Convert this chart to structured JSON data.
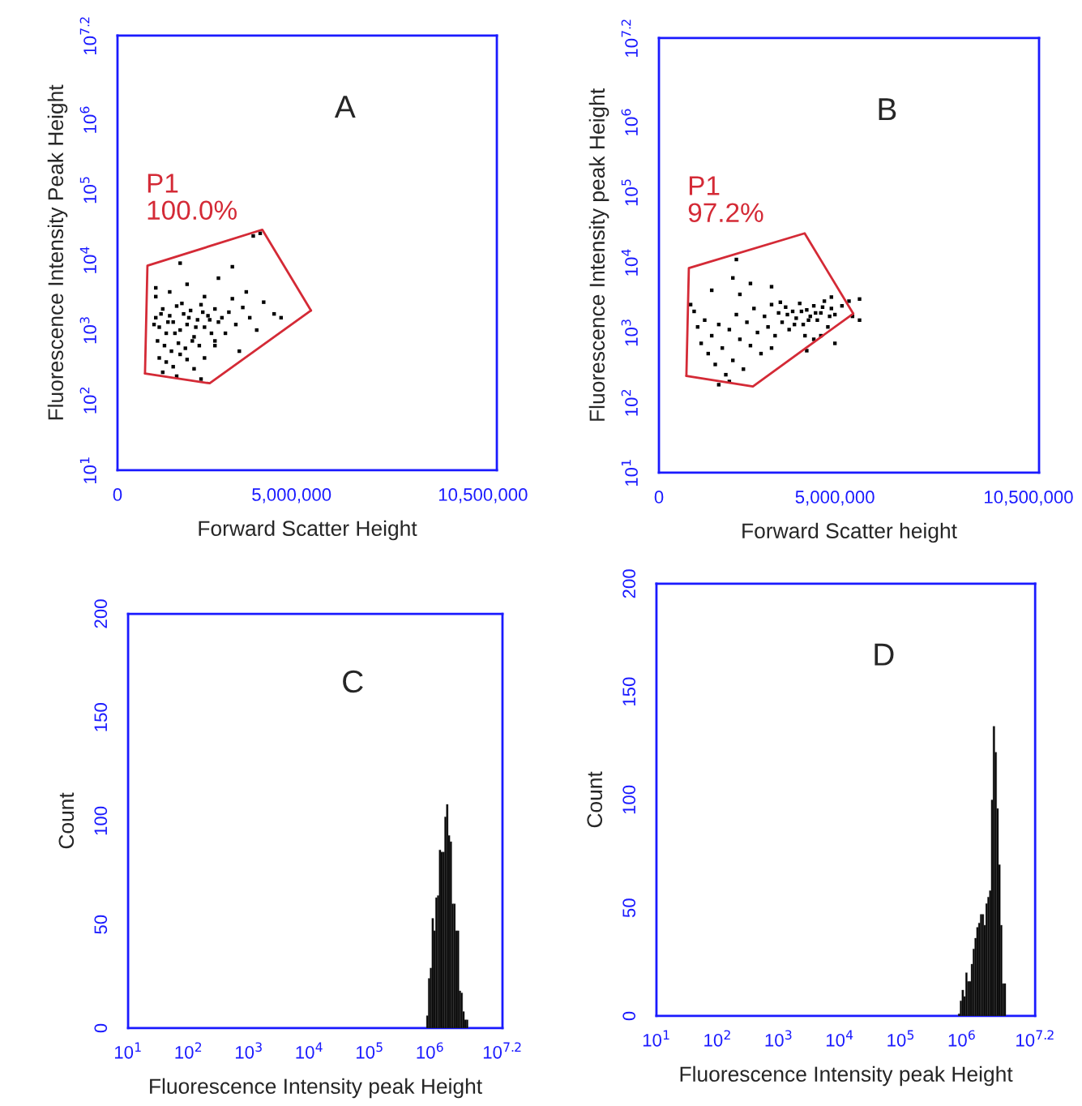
{
  "chart_data": [
    {
      "type": "scatter",
      "title": "A",
      "xlabel": "Forward Scatter Height",
      "ylabel": "Fluorescence Intensity Peak Height",
      "log": "y",
      "xlim": [
        0,
        10900000
      ],
      "xticks": [
        0,
        {
          "value": 5000000,
          "label": "5,000,000"
        },
        {
          "value": 10500000,
          "label": "10,500,000"
        }
      ],
      "ylim": [
        10,
        15848932
      ],
      "yticks": [
        {
          "value": 10,
          "label": "10$^{1}$"
        },
        {
          "value": 100,
          "label": "10$^{2}$"
        },
        {
          "value": 1000,
          "label": "10$^{3}$"
        },
        {
          "value": 10000,
          "label": "10$^{4}$"
        },
        {
          "value": 100000,
          "label": "10$^{5}$"
        },
        {
          "value": 1000000,
          "label": "10$^{6}$"
        },
        {
          "value": 15848932,
          "label": "10$^{7.2}$"
        }
      ],
      "annotations": [
        "P1",
        "100.0%"
      ],
      "series": [
        {
          "type": "scatter",
          "color": "#000000",
          "marker": "square",
          "x": [
            1100000,
            1200000,
            1300000,
            1400000,
            1500000,
            1600000,
            1700000,
            1800000,
            1900000,
            2000000,
            2100000,
            2200000,
            2300000,
            2400000,
            2500000,
            2600000,
            2700000,
            2800000,
            2900000,
            3000000,
            1050000,
            1250000,
            1450000,
            1650000,
            1850000,
            2050000,
            2250000,
            2450000,
            2650000,
            1150000,
            1350000,
            1550000,
            1750000,
            1950000,
            2150000,
            2350000,
            1200000,
            1400000,
            1600000,
            1800000,
            2000000,
            1300000,
            1700000,
            2200000,
            2500000,
            2800000,
            3200000,
            3400000,
            3600000,
            3800000,
            4000000,
            3300000,
            3700000,
            4200000,
            4500000,
            4700000,
            1100000,
            1500000,
            2000000,
            2500000,
            2900000,
            3300000,
            1800000,
            3900000,
            4100000,
            1100000,
            2800000,
            3100000,
            3500000,
            2400000
          ],
          "values": [
            1500,
            1100,
            2000,
            900,
            1600,
            1300,
            2200,
            1000,
            1700,
            1200,
            1900,
            800,
            1400,
            2300,
            1100,
            1600,
            900,
            2000,
            1300,
            1500,
            1200,
            1700,
            1300,
            900,
            2400,
            1500,
            1100,
            1800,
            1400,
            700,
            600,
            500,
            650,
            550,
            700,
            600,
            400,
            350,
            300,
            450,
            380,
            250,
            220,
            280,
            400,
            600,
            1800,
            1200,
            2100,
            1500,
            1000,
            2800,
            3500,
            2500,
            1700,
            1500,
            3000,
            3500,
            4500,
            3000,
            5500,
            8000,
            9000,
            22000,
            24000,
            4000,
            700,
            900,
            500,
            200
          ]
        },
        {
          "type": "line",
          "color": "#d42a36",
          "x": [
            790000,
            860000,
            4160000,
            5560000
          ],
          "values": [
            240,
            8300,
            27000,
            1900
          ]
        },
        {
          "type": "line",
          "color": "#d42a36",
          "x": [
            790000,
            2650000,
            5560000
          ],
          "values": [
            240,
            174,
            1900
          ]
        }
      ]
    },
    {
      "type": "scatter",
      "title": "B",
      "xlabel": "Forward Scatter height",
      "ylabel": "Fluorescence Intensity peak Height",
      "log": "y",
      "xlim": [
        0,
        10800000
      ],
      "xticks": [
        0,
        {
          "value": 5000000,
          "label": "5,000,000"
        },
        {
          "value": 10500000,
          "label": "10,500,000"
        }
      ],
      "ylim": [
        10,
        15848932
      ],
      "yticks": [
        {
          "value": 10,
          "label": "10$^{1}$"
        },
        {
          "value": 100,
          "label": "10$^{2}$"
        },
        {
          "value": 1000,
          "label": "10$^{3}$"
        },
        {
          "value": 10000,
          "label": "10$^{4}$"
        },
        {
          "value": 100000,
          "label": "10$^{5}$"
        },
        {
          "value": 1000000,
          "label": "10$^{6}$"
        },
        {
          "value": 15848932,
          "label": "10$^{7.2}$"
        }
      ],
      "annotations": [
        "P1",
        "97.2%"
      ],
      "series": [
        {
          "type": "scatter",
          "color": "#000000",
          "marker": "square",
          "x": [
            1000000,
            1100000,
            1200000,
            1300000,
            1400000,
            1500000,
            1600000,
            1700000,
            1800000,
            1900000,
            2000000,
            2100000,
            2200000,
            2300000,
            2400000,
            2500000,
            2600000,
            2700000,
            2800000,
            2900000,
            3000000,
            3100000,
            3200000,
            3300000,
            3400000,
            3500000,
            3600000,
            3700000,
            3800000,
            3900000,
            4000000,
            4100000,
            4200000,
            4300000,
            4400000,
            4500000,
            4600000,
            4700000,
            4800000,
            4900000,
            5000000,
            3450000,
            3650000,
            3850000,
            4050000,
            4250000,
            4450000,
            4650000,
            4850000,
            4150000,
            4400000,
            3200000,
            2000000,
            1700000,
            2300000,
            1500000,
            2100000,
            2600000,
            3200000,
            900000,
            2200000,
            4900000,
            5200000,
            5400000,
            5700000,
            5700000,
            5500000,
            4600000,
            5000000,
            4200000
          ],
          "values": [
            2000,
            1200,
            700,
            1500,
            500,
            900,
            350,
            1300,
            600,
            250,
            1100,
            400,
            1800,
            800,
            300,
            1400,
            650,
            2200,
            1000,
            500,
            1700,
            1200,
            2500,
            900,
            1900,
            1400,
            2300,
            1100,
            2000,
            1600,
            2600,
            1300,
            2100,
            1700,
            2400,
            1500,
            1900,
            2800,
            1200,
            2200,
            1800,
            2700,
            1800,
            1300,
            2000,
            1500,
            1900,
            2300,
            1700,
            900,
            800,
            600,
            200,
            180,
            3500,
            4000,
            6000,
            5000,
            4500,
            2500,
            11000,
            3200,
            2400,
            2800,
            3000,
            1500,
            1700,
            900,
            700,
            550
          ]
        },
        {
          "type": "line",
          "color": "#d42a36",
          "x": [
            780000,
            850000,
            4140000,
            5520000
          ],
          "values": [
            240,
            8300,
            26000,
            1860
          ]
        },
        {
          "type": "line",
          "color": "#d42a36",
          "x": [
            780000,
            2670000,
            5520000
          ],
          "values": [
            240,
            170,
            1860
          ]
        }
      ]
    },
    {
      "type": "histogram",
      "title": "C",
      "xlabel": "Fluorescence Intensity peak Height",
      "ylabel": "Count",
      "log": "x",
      "color": "#000000",
      "xlim": [
        10,
        15848932
      ],
      "xticks": [
        {
          "value": 10,
          "label": "10$^{1}$"
        },
        {
          "value": 100,
          "label": "10$^{2}$"
        },
        {
          "value": 1000,
          "label": "10$^{3}$"
        },
        {
          "value": 10000,
          "label": "10$^{4}$"
        },
        {
          "value": 100000,
          "label": "10$^{5}$"
        },
        {
          "value": 1000000,
          "label": "10$^{6}$"
        },
        {
          "value": 15848932,
          "label": "10$^{7.2}$"
        }
      ],
      "ylim": [
        0,
        200
      ],
      "yticks": [
        0,
        50,
        100,
        150,
        200
      ],
      "bins": [
        871000,
        933000,
        1000000,
        1072000,
        1148000,
        1230000,
        1318000,
        1413000,
        1514000,
        1622000,
        1738000,
        1862000,
        1995000,
        2138000,
        2291000,
        2455000,
        2630000,
        2818000,
        3020000,
        3236000,
        3467000,
        3715000,
        3981000,
        4266000
      ],
      "values": [
        6,
        24,
        29,
        53,
        47,
        63,
        64,
        86,
        85,
        85,
        102,
        108,
        93,
        90,
        60,
        60,
        47,
        47,
        18,
        17,
        8,
        4,
        4
      ]
    },
    {
      "type": "histogram",
      "title": "D",
      "xlabel": "Fluorescence Intensity peak Height",
      "ylabel": "Count",
      "log": "x",
      "color": "#000000",
      "xlim": [
        10,
        15848932
      ],
      "xticks": [
        {
          "value": 10,
          "label": "10$^{1}$"
        },
        {
          "value": 100,
          "label": "10$^{2}$"
        },
        {
          "value": 1000,
          "label": "10$^{3}$"
        },
        {
          "value": 10000,
          "label": "10$^{4}$"
        },
        {
          "value": 100000,
          "label": "10$^{5}$"
        },
        {
          "value": 1000000,
          "label": "10$^{6}$"
        },
        {
          "value": 15848932,
          "label": "10$^{7.2}$"
        }
      ],
      "ylim": [
        0,
        200
      ],
      "yticks": [
        0,
        50,
        100,
        150,
        200
      ],
      "bins": [
        871000,
        933000,
        1000000,
        1072000,
        1148000,
        1230000,
        1318000,
        1413000,
        1514000,
        1622000,
        1738000,
        1862000,
        1995000,
        2138000,
        2291000,
        2455000,
        2630000,
        2818000,
        3020000,
        3236000,
        3467000,
        3715000,
        3981000,
        4266000,
        4571000,
        4898000,
        5248000
      ],
      "values": [
        1,
        7,
        12,
        9,
        20,
        16,
        16,
        24,
        31,
        36,
        41,
        43,
        47,
        47,
        42,
        52,
        55,
        58,
        100,
        134,
        122,
        96,
        70,
        42,
        15,
        15
      ]
    }
  ]
}
